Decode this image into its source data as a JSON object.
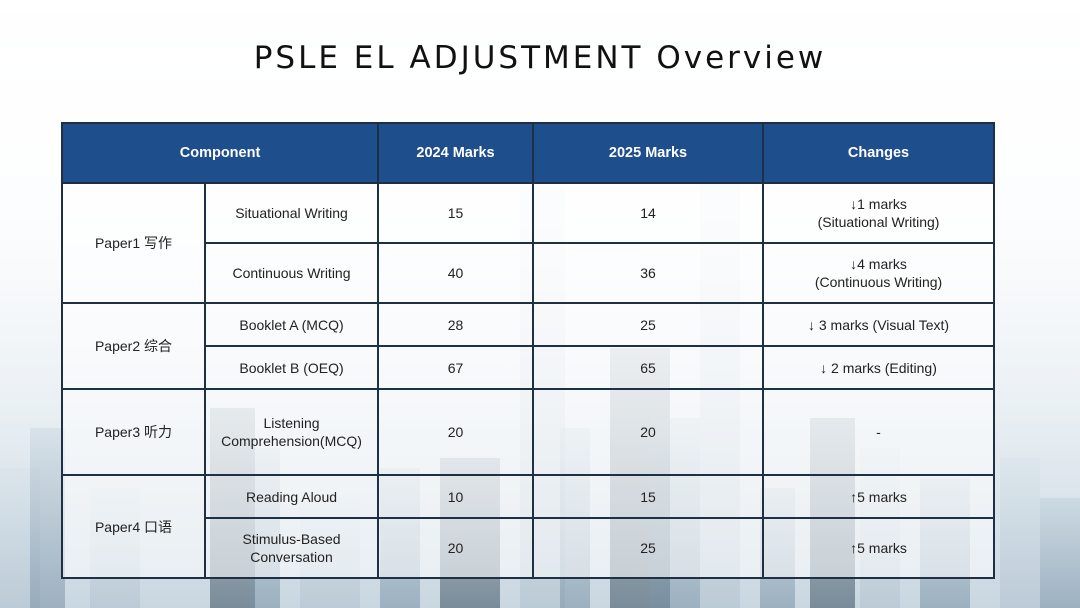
{
  "title": "PSLE EL ADJUSTMENT Overview",
  "table": {
    "headers": {
      "component": "Component",
      "marks_2024": "2024 Marks",
      "marks_2025": "2025 Marks",
      "changes": "Changes"
    },
    "papers": [
      {
        "name": "Paper1 写作",
        "rows": [
          {
            "sub": "Situational Writing",
            "m2024": "15",
            "m2025": "14",
            "change_line1": "↓1 marks",
            "change_line2": "(Situational Writing)"
          },
          {
            "sub": "Continuous Writing",
            "m2024": "40",
            "m2025": "36",
            "change_line1": "↓4 marks",
            "change_line2": "(Continuous Writing)"
          }
        ]
      },
      {
        "name": "Paper2 综合",
        "rows": [
          {
            "sub": "Booklet A (MCQ)",
            "m2024": "28",
            "m2025": "25",
            "change_line1": "↓ 3 marks (Visual Text)"
          },
          {
            "sub": "Booklet B (OEQ)",
            "m2024": "67",
            "m2025": "65",
            "change_line1": "↓ 2 marks (Editing)"
          }
        ]
      },
      {
        "name": "Paper3 听力",
        "rows": [
          {
            "sub_line1": "Listening",
            "sub_line2": "Comprehension(MCQ)",
            "m2024": "20",
            "m2025": "20",
            "change_line1": "-"
          }
        ]
      },
      {
        "name": "Paper4 口语",
        "rows": [
          {
            "sub": "Reading Aloud",
            "m2024": "10",
            "m2025": "15",
            "change_line1": "↑5 marks"
          },
          {
            "sub_line1": "Stimulus-Based",
            "sub_line2": "Conversation",
            "m2024": "20",
            "m2025": "25",
            "change_line1": "↑5 marks"
          }
        ]
      }
    ]
  }
}
